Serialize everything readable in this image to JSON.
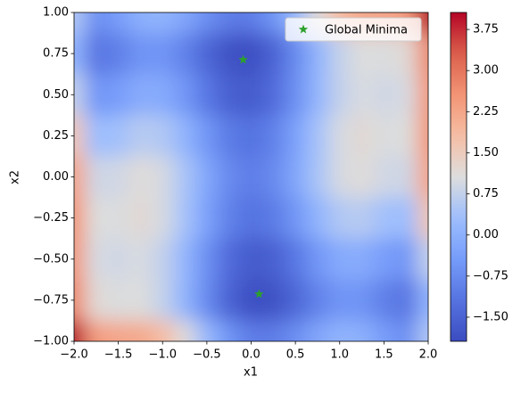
{
  "chart_data": {
    "type": "contour",
    "xlabel": "x1",
    "ylabel": "x2",
    "xlim": [
      -2,
      2
    ],
    "ylim": [
      -1,
      1
    ],
    "xticks": [
      {
        "value": -2,
        "label": "−2.0"
      },
      {
        "value": -1.5,
        "label": "−1.5"
      },
      {
        "value": -1,
        "label": "−1.0"
      },
      {
        "value": -0.5,
        "label": "−0.5"
      },
      {
        "value": 0,
        "label": "0.0"
      },
      {
        "value": 0.5,
        "label": "0.5"
      },
      {
        "value": 1,
        "label": "1.0"
      },
      {
        "value": 1.5,
        "label": "1.5"
      },
      {
        "value": 2,
        "label": "2.0"
      }
    ],
    "yticks": [
      {
        "value": -1,
        "label": "−1.00"
      },
      {
        "value": -0.75,
        "label": "−0.75"
      },
      {
        "value": -0.5,
        "label": "−0.50"
      },
      {
        "value": -0.25,
        "label": "−0.25"
      },
      {
        "value": 0,
        "label": "0.00"
      },
      {
        "value": 0.25,
        "label": "0.25"
      },
      {
        "value": 0.5,
        "label": "0.50"
      },
      {
        "value": 0.75,
        "label": "0.75"
      },
      {
        "value": 1,
        "label": "1.00"
      }
    ],
    "colormap": "coolwarm",
    "clim": [
      -1.94,
      4.06
    ],
    "cticks": [
      {
        "value": -1.5,
        "label": "−1.50"
      },
      {
        "value": -0.75,
        "label": "−0.75"
      },
      {
        "value": 0,
        "label": "0.00"
      },
      {
        "value": 0.75,
        "label": "0.75"
      },
      {
        "value": 1.5,
        "label": "1.50"
      },
      {
        "value": 2.25,
        "label": "2.25"
      },
      {
        "value": 3,
        "label": "3.00"
      },
      {
        "value": 3.75,
        "label": "3.75"
      }
    ],
    "grid_x": [
      -2,
      -1.75,
      -1.5,
      -1.25,
      -1,
      -0.75,
      -0.5,
      -0.25,
      0,
      0.25,
      0.5,
      0.75,
      1,
      1.25,
      1.5,
      1.75,
      2
    ],
    "grid_y": [
      1,
      0.75,
      0.5,
      0.25,
      0,
      -0.25,
      -0.5,
      -0.75,
      -1
    ],
    "z": [
      [
        0.53,
        -0.67,
        -0.41,
        0.01,
        0.09,
        -0.21,
        -0.67,
        -1.01,
        -1.0,
        -0.57,
        0.21,
        1.11,
        1.85,
        2.21,
        2.23,
        2.41,
        4.05
      ],
      [
        0.1,
        -1.15,
        -0.95,
        -0.58,
        -0.56,
        -0.91,
        -1.43,
        -1.82,
        -1.87,
        -1.49,
        -0.77,
        0.08,
        0.76,
        1.07,
        1.03,
        1.16,
        2.74
      ],
      [
        0.75,
        -0.56,
        -0.41,
        -0.1,
        -0.13,
        -0.54,
        -1.11,
        -1.56,
        -1.66,
        -1.34,
        -0.67,
        0.12,
        0.75,
        1.0,
        0.91,
        0.98,
        2.51
      ],
      [
        1.64,
        0.28,
        0.37,
        0.63,
        0.54,
        0.08,
        -0.55,
        -1.05,
        -1.21,
        -0.94,
        -0.33,
        0.41,
        0.98,
        1.18,
        1.03,
        1.05,
        2.52
      ],
      [
        2.29,
        0.87,
        0.91,
        1.11,
        0.97,
        0.45,
        -0.23,
        -0.79,
        -1.0,
        -0.79,
        -0.23,
        0.45,
        0.97,
        1.11,
        0.91,
        0.87,
        2.29
      ],
      [
        2.52,
        1.05,
        1.03,
        1.18,
        0.98,
        0.41,
        -0.33,
        -0.94,
        -1.21,
        -1.05,
        -0.55,
        0.08,
        0.54,
        0.63,
        0.37,
        0.28,
        1.64
      ],
      [
        2.51,
        0.98,
        0.91,
        1.0,
        0.75,
        0.12,
        -0.67,
        -1.34,
        -1.66,
        -1.56,
        -1.11,
        -0.54,
        -0.13,
        -0.1,
        -0.41,
        -0.56,
        0.75
      ],
      [
        2.74,
        1.16,
        1.03,
        1.07,
        0.76,
        0.08,
        -0.77,
        -1.49,
        -1.87,
        -1.82,
        -1.43,
        -0.91,
        -0.56,
        -0.58,
        -0.95,
        -1.15,
        0.1
      ],
      [
        4.05,
        2.41,
        2.23,
        2.21,
        1.85,
        1.11,
        0.21,
        -0.57,
        -1.0,
        -1.01,
        -0.67,
        -0.21,
        0.09,
        0.01,
        -0.41,
        -0.67,
        0.53
      ]
    ],
    "points": {
      "name": "Global Minima",
      "color": "#2ca02c",
      "x": [
        -0.0898,
        0.0898
      ],
      "y": [
        0.7126,
        -0.7126
      ]
    },
    "legend": "upper right"
  }
}
